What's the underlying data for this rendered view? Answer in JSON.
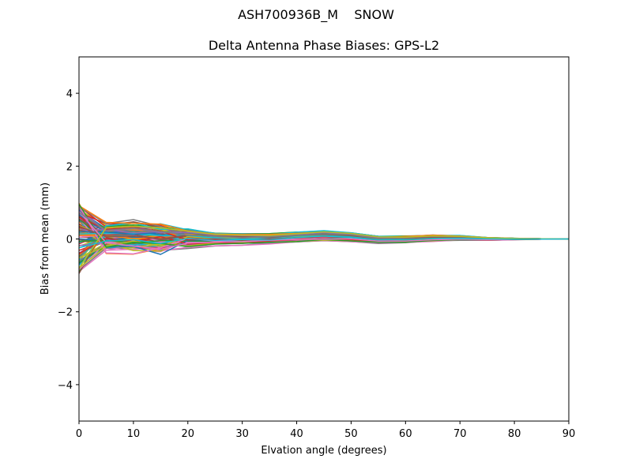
{
  "figure": {
    "suptitle": "ASH700936B_M    SNOW",
    "title": "Delta Antenna Phase Biases: GPS-L2"
  },
  "chart_data": {
    "type": "line",
    "title": "Delta Antenna Phase Biases: GPS-L2",
    "suptitle": "ASH700936B_M    SNOW",
    "xlabel": "Elvation angle (degrees)",
    "ylabel": "Bias from mean (mm)",
    "xlim": [
      0,
      90
    ],
    "ylim": [
      -5,
      5
    ],
    "xticks": [
      0,
      10,
      20,
      30,
      40,
      50,
      60,
      70,
      80,
      90
    ],
    "yticks": [
      -4,
      -2,
      0,
      2,
      4
    ],
    "ytick_labels": [
      "−4",
      "−2",
      "0",
      "2",
      "4"
    ],
    "grid": false,
    "legend": null,
    "x": [
      0,
      5,
      10,
      15,
      20,
      25,
      30,
      35,
      40,
      45,
      50,
      55,
      60,
      65,
      70,
      75,
      80,
      85,
      90
    ],
    "series_count": 120,
    "envelope_upper": [
      1.0,
      0.55,
      0.65,
      0.55,
      0.4,
      0.25,
      0.2,
      0.2,
      0.25,
      0.28,
      0.22,
      0.12,
      0.12,
      0.15,
      0.12,
      0.06,
      0.03,
      0.01,
      0.0
    ],
    "envelope_lower": [
      -0.95,
      -0.45,
      -0.5,
      -0.5,
      -0.35,
      -0.25,
      -0.22,
      -0.18,
      -0.15,
      -0.12,
      -0.12,
      -0.16,
      -0.14,
      -0.1,
      -0.06,
      -0.05,
      -0.03,
      -0.01,
      0.0
    ],
    "color_cycle": [
      "#1f77b4",
      "#ff7f0e",
      "#2ca02c",
      "#d62728",
      "#9467bd",
      "#8c564b",
      "#e377c2",
      "#7f7f7f",
      "#bcbd22",
      "#17becf"
    ],
    "note": "Many overlapping GPS-L2 bias curves per satellite/epoch; values bounded by envelope, converging to 0 at 90 degrees."
  }
}
